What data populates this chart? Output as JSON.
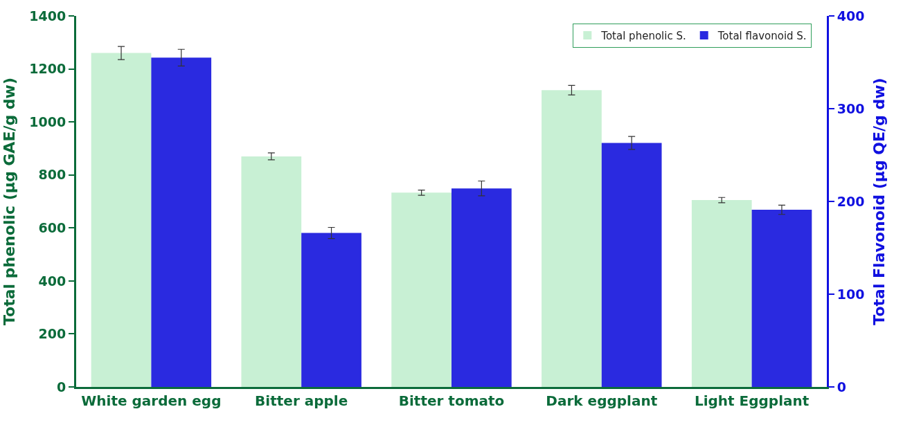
{
  "chart_data": {
    "type": "bar",
    "ylabel": "Total phenolic (µg GAE/g dw)",
    "y2label": "Total Flavonoid (µg QE/g dw)",
    "categories": [
      "White garden egg",
      "Bitter apple",
      "Bitter tomato",
      "Dark eggplant",
      "Light Eggplant"
    ],
    "series": [
      {
        "name": "Total phenolic S.",
        "color": "#c8f0d4",
        "values": [
          1260,
          870,
          733,
          1120,
          705
        ],
        "errors": [
          25,
          13,
          10,
          18,
          10
        ]
      },
      {
        "name": "Total flavonoid S.",
        "color": "#2a2ae0",
        "axis": "y2",
        "values": [
          355,
          166,
          214,
          263,
          191
        ],
        "errors": [
          9,
          6,
          8,
          7,
          5
        ]
      }
    ],
    "ylim": [
      0,
      1400
    ],
    "yticks": [
      0,
      200,
      400,
      600,
      800,
      1000,
      1200,
      1400
    ],
    "y2lim": [
      0,
      400
    ],
    "y2ticks": [
      0,
      100,
      200,
      300,
      400
    ],
    "legend": "top right"
  }
}
